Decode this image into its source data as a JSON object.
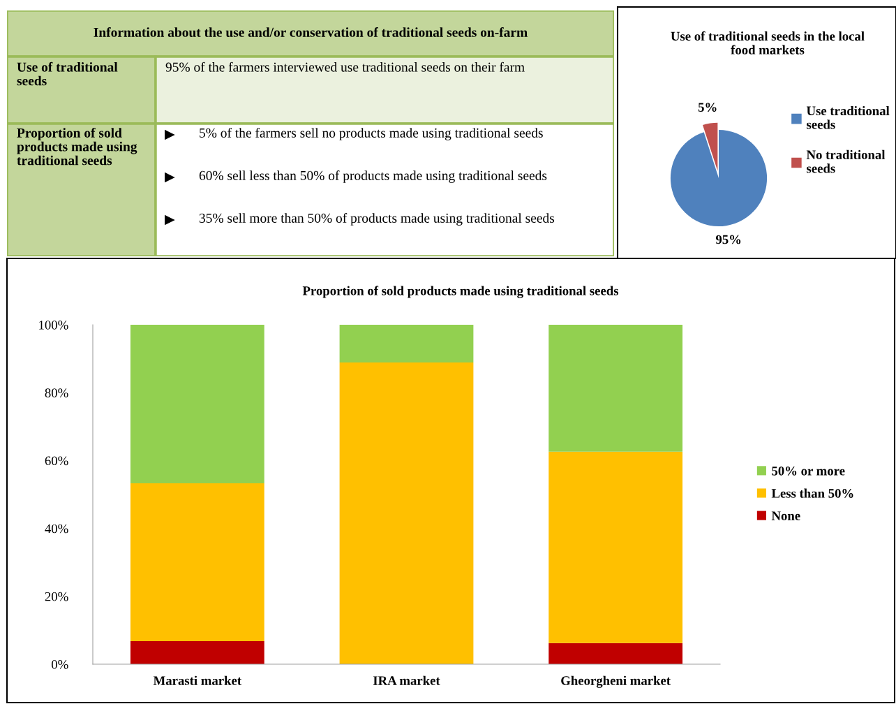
{
  "chart_data": [
    {
      "type": "other",
      "title": "Information about the use and/or conservation of traditional seeds on-farm",
      "annotations": [
        "Use of traditional seeds",
        "95% of the farmers interviewed use traditional seeds on their farm",
        "Proportion of sold products made using traditional seeds",
        "5% of the farmers sell no products made using traditional seeds",
        "60% sell less than 50% of products made using traditional seeds",
        "35% sell more than 50% of products made using traditional seeds"
      ]
    },
    {
      "type": "pie",
      "title": "Use of traditional seeds in the local food markets",
      "categories": [
        "Use traditional seeds",
        "No traditional seeds"
      ],
      "values": [
        95,
        5
      ],
      "colors": [
        "#4f81bd",
        "#c0504d"
      ],
      "value_labels": [
        "95%",
        "5%"
      ],
      "legend": "right"
    },
    {
      "type": "bar",
      "title": "Proportion of sold products made using traditional seeds",
      "categories": [
        "Marasti market",
        "IRA market",
        "Gheorgheni market"
      ],
      "stacked": true,
      "series": [
        {
          "name": "None",
          "color": "#c00000",
          "values": [
            6.8,
            0,
            6.2
          ]
        },
        {
          "name": "Less than 50%",
          "color": "#ffc000",
          "values": [
            46.5,
            88.9,
            56.4
          ]
        },
        {
          "name": "50% or more",
          "color": "#92d050",
          "values": [
            46.7,
            11.1,
            37.4
          ]
        }
      ],
      "ylim": [
        0,
        100
      ],
      "yticks": [
        {
          "value": 0,
          "label": "0%"
        },
        {
          "value": 20,
          "label": "20%"
        },
        {
          "value": 40,
          "label": "40%"
        },
        {
          "value": 60,
          "label": "60%"
        },
        {
          "value": 80,
          "label": "80%"
        },
        {
          "value": 100,
          "label": "100%"
        }
      ],
      "grid": false,
      "legend": "right"
    }
  ]
}
